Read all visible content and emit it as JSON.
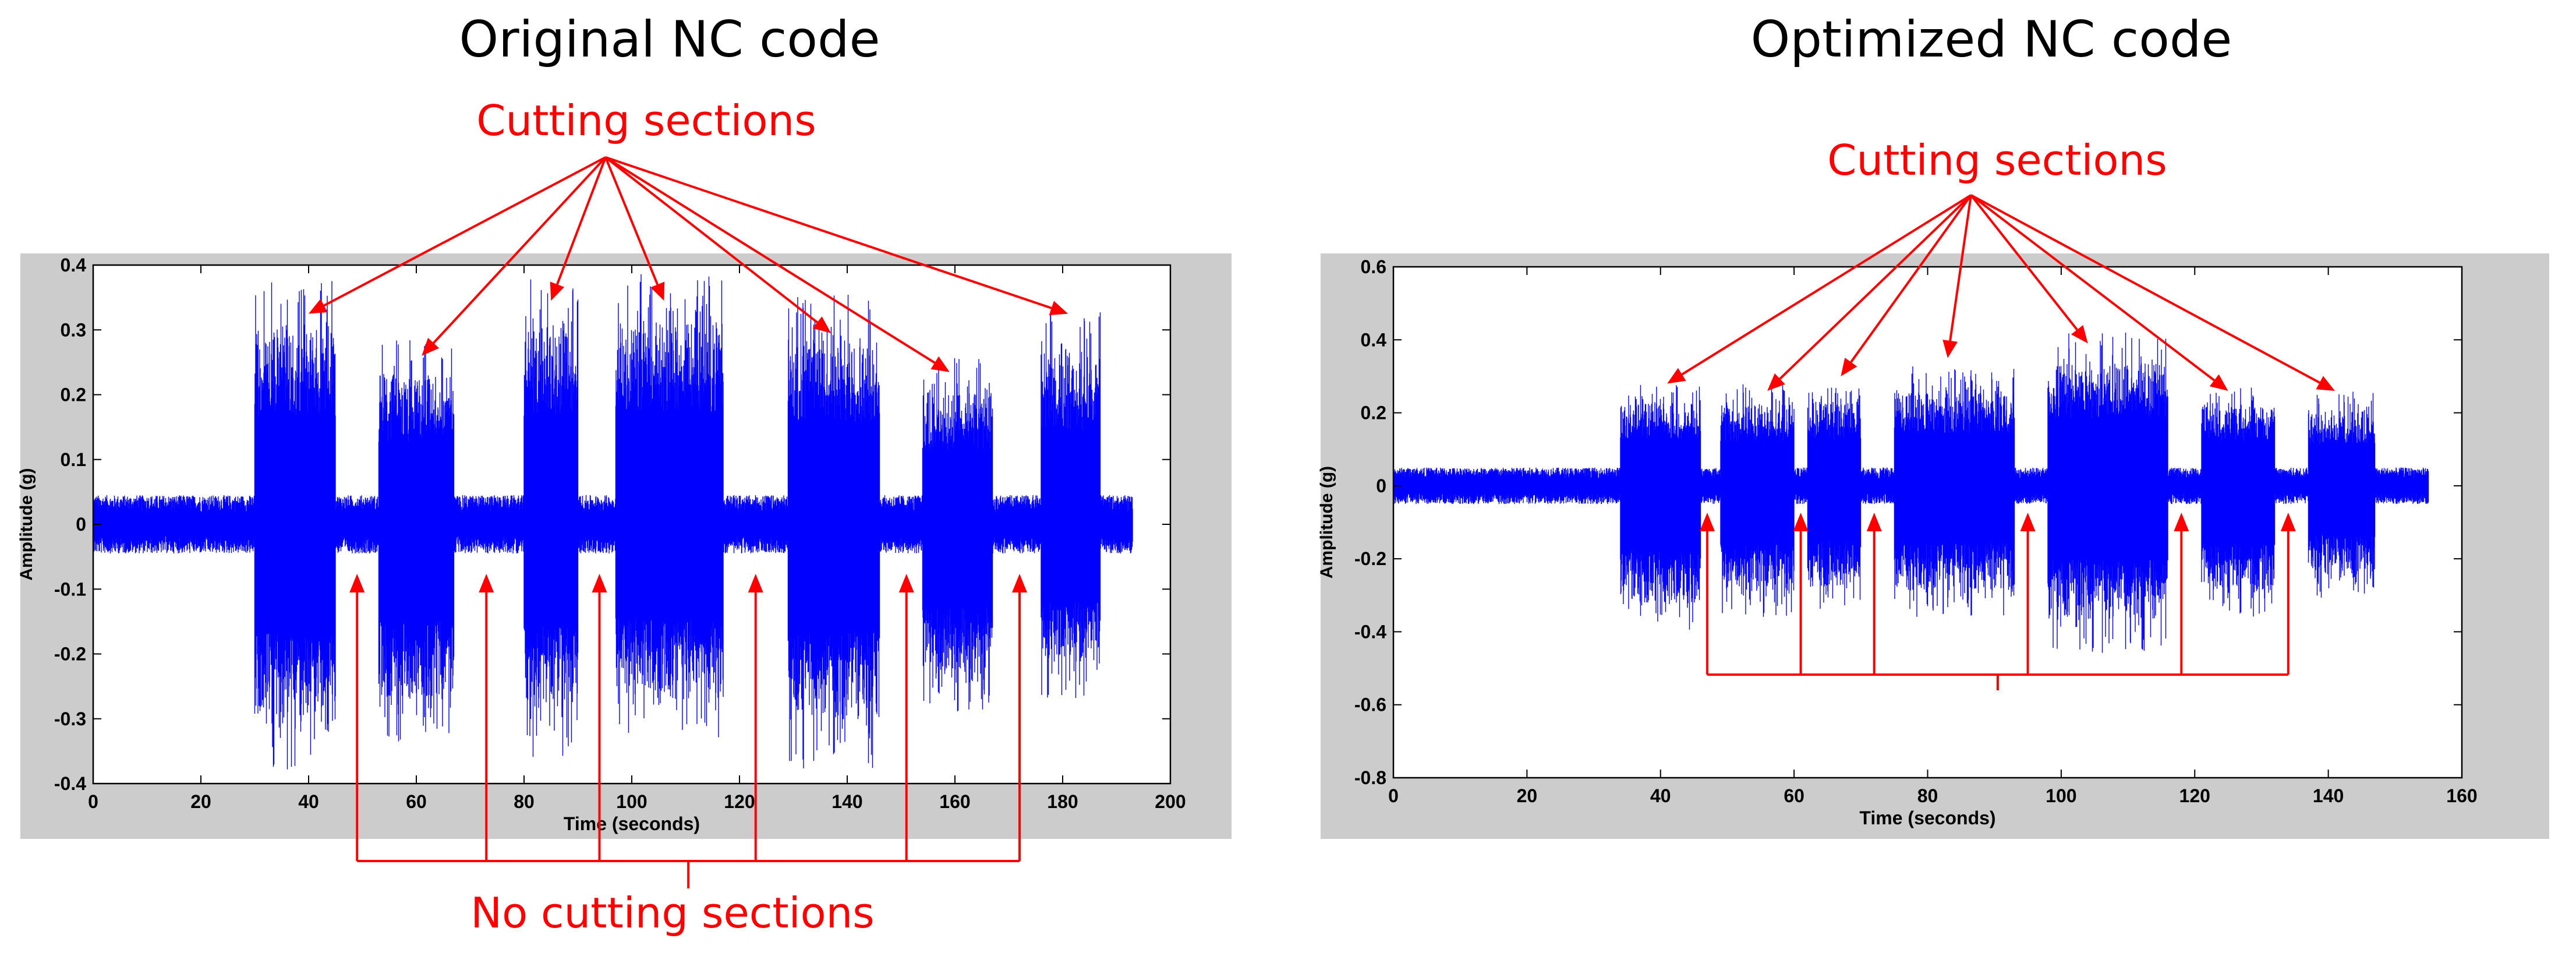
{
  "colors": {
    "signal": "#0000ff",
    "annotation": "#ff0000",
    "frame": "#cccccc",
    "axes_bg": "#ffffff"
  },
  "annotations": {
    "cutting": "Cutting sections",
    "no_cutting": "No cutting sections"
  },
  "chart_data": [
    {
      "type": "line",
      "title": "Original NC code",
      "xlabel": "Time (seconds)",
      "ylabel": "Amplitude (g)",
      "xlim": [
        0,
        200
      ],
      "ylim": [
        -0.4,
        0.4
      ],
      "xticks": [
        0,
        20,
        40,
        60,
        80,
        100,
        120,
        140,
        160,
        180,
        200
      ],
      "yticks": [
        -0.4,
        -0.3,
        -0.2,
        -0.1,
        0,
        0.1,
        0.2,
        0.3,
        0.4
      ],
      "grid": false,
      "series": [
        {
          "signal_extent": [
            0,
            193
          ],
          "baseline_amplitude": 0.045,
          "cutting_sections": [
            {
              "start": 30,
              "end": 45,
              "max": 0.38,
              "min": -0.38
            },
            {
              "start": 53,
              "end": 67,
              "max": 0.29,
              "min": -0.34
            },
            {
              "start": 80,
              "end": 90,
              "max": 0.38,
              "min": -0.36
            },
            {
              "start": 97,
              "end": 117,
              "max": 0.39,
              "min": -0.33
            },
            {
              "start": 129,
              "end": 146,
              "max": 0.36,
              "min": -0.38
            },
            {
              "start": 154,
              "end": 167,
              "max": 0.26,
              "min": -0.29
            },
            {
              "start": 176,
              "end": 187,
              "max": 0.33,
              "min": -0.27
            }
          ]
        }
      ],
      "cutting_arrow_targets": [
        [
          40,
          0.325
        ],
        [
          61,
          0.26
        ],
        [
          85,
          0.345
        ],
        [
          106,
          0.345
        ],
        [
          137,
          0.295
        ],
        [
          159,
          0.235
        ],
        [
          181,
          0.325
        ]
      ],
      "no_cutting_arrow_targets": [
        49,
        73,
        94,
        123,
        151,
        172
      ]
    },
    {
      "type": "line",
      "title": "Optimized NC code",
      "xlabel": "Time (seconds)",
      "ylabel": "Amplitude (g)",
      "xlim": [
        0,
        160
      ],
      "ylim": [
        -0.8,
        0.6
      ],
      "xticks": [
        0,
        20,
        40,
        60,
        80,
        100,
        120,
        140,
        160
      ],
      "yticks": [
        -0.8,
        -0.6,
        -0.4,
        -0.2,
        0,
        0.2,
        0.4,
        0.6
      ],
      "grid": false,
      "series": [
        {
          "signal_extent": [
            0,
            155
          ],
          "baseline_amplitude": 0.05,
          "cutting_sections": [
            {
              "start": 34,
              "end": 46,
              "max": 0.29,
              "min": -0.41
            },
            {
              "start": 49,
              "end": 60,
              "max": 0.28,
              "min": -0.36
            },
            {
              "start": 62,
              "end": 70,
              "max": 0.29,
              "min": -0.35
            },
            {
              "start": 75,
              "end": 93,
              "max": 0.33,
              "min": -0.36
            },
            {
              "start": 98,
              "end": 116,
              "max": 0.42,
              "min": -0.46
            },
            {
              "start": 121,
              "end": 132,
              "max": 0.28,
              "min": -0.36
            },
            {
              "start": 137,
              "end": 147,
              "max": 0.26,
              "min": -0.31
            }
          ]
        }
      ],
      "cutting_arrow_targets": [
        [
          41,
          0.28
        ],
        [
          56,
          0.26
        ],
        [
          67,
          0.3
        ],
        [
          83,
          0.35
        ],
        [
          104,
          0.39
        ],
        [
          125,
          0.26
        ],
        [
          141,
          0.26
        ]
      ],
      "no_cutting_arrow_targets": [
        47,
        61,
        72,
        95,
        118,
        134
      ]
    }
  ]
}
